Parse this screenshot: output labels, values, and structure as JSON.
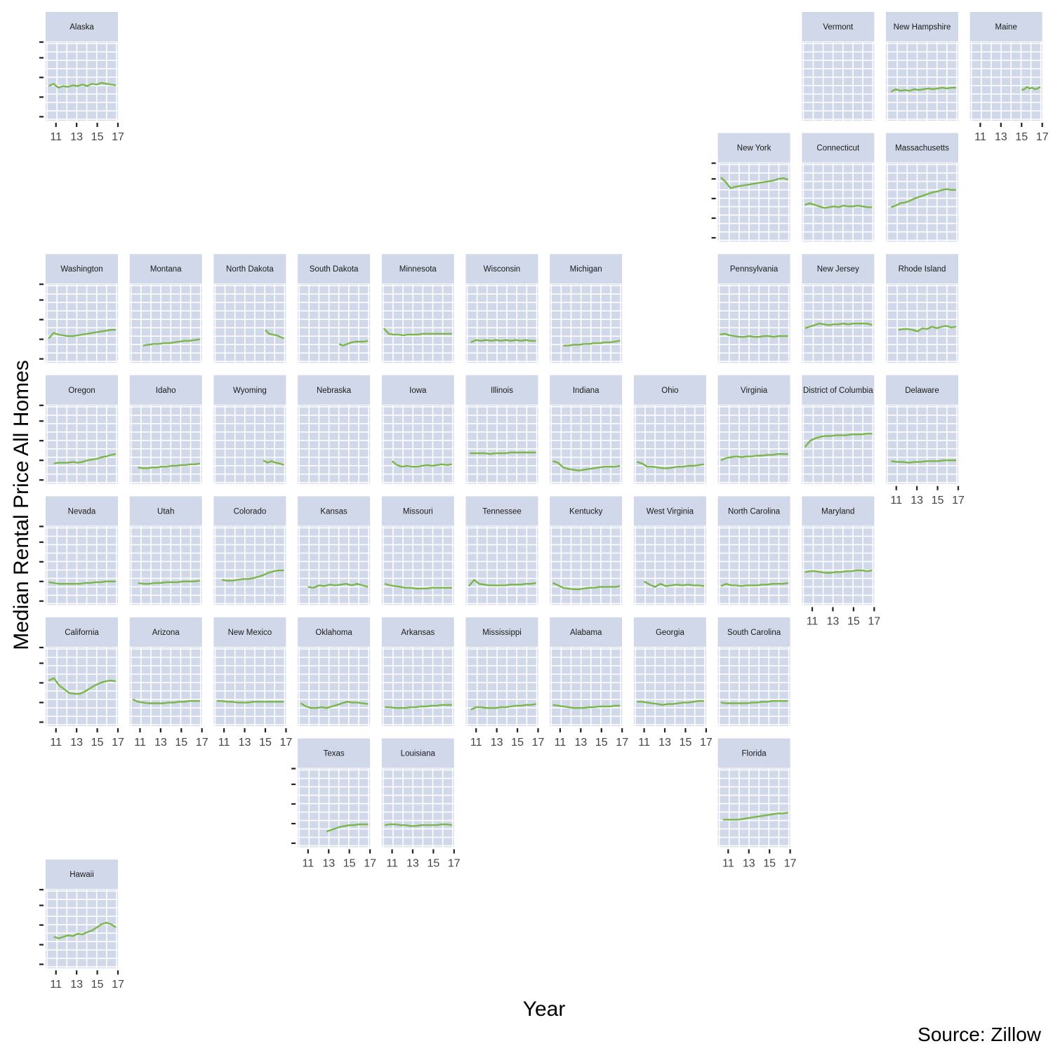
{
  "chart_data": {
    "type": "line",
    "layout": "geofacet-us-states",
    "xlabel": "Year",
    "ylabel": "Median Rental Price All Homes",
    "caption": "Source: Zillow",
    "x_tick_labels": [
      "11",
      "13",
      "15",
      "17"
    ],
    "x_ticks": [
      11,
      13,
      15,
      17
    ],
    "xlim": [
      10,
      17
    ],
    "ylim": [
      0,
      1
    ],
    "y_tick_values": [
      0.05,
      0.3,
      0.55,
      0.8,
      1.0
    ],
    "grid": true,
    "panel_background": "#d1d8e9",
    "strip_background": "#d1d8e9",
    "grid_color": "#ffffff",
    "line_color": "#7ab648",
    "panels": [
      {
        "name": "Alaska",
        "row": 0,
        "col": 0,
        "x_start": 10.3,
        "values": [
          0.44,
          0.47,
          0.42,
          0.44,
          0.43,
          0.45,
          0.44,
          0.46,
          0.44,
          0.47,
          0.46,
          0.48,
          0.47,
          0.46,
          0.45
        ]
      },
      {
        "name": "Vermont",
        "row": 0,
        "col": 9,
        "x_start": null,
        "values": []
      },
      {
        "name": "New Hampshire",
        "row": 0,
        "col": 10,
        "x_start": 10.5,
        "values": [
          0.37,
          0.4,
          0.38,
          0.39,
          0.38,
          0.4,
          0.39,
          0.4,
          0.41,
          0.4,
          0.41,
          0.42,
          0.41,
          0.42,
          0.42
        ]
      },
      {
        "name": "Maine",
        "row": 0,
        "col": 11,
        "x_start": 15.0,
        "values": [
          0.39,
          0.4,
          0.43,
          0.41,
          0.42,
          0.4,
          0.41,
          0.43
        ]
      },
      {
        "name": "New York",
        "row": 1,
        "col": 8,
        "x_start": 10.3,
        "values": [
          0.82,
          0.76,
          0.68,
          0.7,
          0.71,
          0.72,
          0.73,
          0.74,
          0.75,
          0.76,
          0.77,
          0.78,
          0.8,
          0.81,
          0.79
        ]
      },
      {
        "name": "Connecticut",
        "row": 1,
        "col": 9,
        "x_start": 10.3,
        "values": [
          0.47,
          0.49,
          0.47,
          0.45,
          0.43,
          0.44,
          0.45,
          0.44,
          0.46,
          0.45,
          0.45,
          0.46,
          0.45,
          0.44,
          0.44
        ]
      },
      {
        "name": "Massachusetts",
        "row": 1,
        "col": 10,
        "x_start": 10.5,
        "values": [
          0.44,
          0.46,
          0.49,
          0.5,
          0.52,
          0.55,
          0.57,
          0.59,
          0.61,
          0.63,
          0.64,
          0.66,
          0.67,
          0.66,
          0.66
        ]
      },
      {
        "name": "Washington",
        "row": 2,
        "col": 0,
        "x_start": 10.3,
        "values": [
          0.31,
          0.38,
          0.36,
          0.35,
          0.34,
          0.34,
          0.35,
          0.36,
          0.37,
          0.38,
          0.39,
          0.4,
          0.41,
          0.42,
          0.42
        ]
      },
      {
        "name": "Montana",
        "row": 2,
        "col": 1,
        "x_start": 11.3,
        "values": [
          0.22,
          0.23,
          0.24,
          0.24,
          0.25,
          0.25,
          0.26,
          0.27,
          0.28,
          0.28,
          0.29,
          0.3
        ]
      },
      {
        "name": "North Dakota",
        "row": 2,
        "col": 2,
        "x_start": 15.0,
        "values": [
          0.42,
          0.37,
          0.36,
          0.35,
          0.33,
          0.31
        ]
      },
      {
        "name": "South Dakota",
        "row": 2,
        "col": 3,
        "x_start": 14.0,
        "values": [
          0.24,
          0.22,
          0.24,
          0.26,
          0.27,
          0.27,
          0.27,
          0.28
        ]
      },
      {
        "name": "Minnesota",
        "row": 2,
        "col": 4,
        "x_start": 10.2,
        "values": [
          0.44,
          0.37,
          0.36,
          0.36,
          0.35,
          0.36,
          0.36,
          0.36,
          0.37,
          0.37,
          0.37,
          0.37,
          0.37,
          0.37,
          0.37
        ]
      },
      {
        "name": "Wisconsin",
        "row": 2,
        "col": 5,
        "x_start": 10.5,
        "values": [
          0.26,
          0.29,
          0.28,
          0.29,
          0.28,
          0.29,
          0.28,
          0.29,
          0.28,
          0.29,
          0.28,
          0.29,
          0.28,
          0.28
        ]
      },
      {
        "name": "Michigan",
        "row": 2,
        "col": 6,
        "x_start": 11.3,
        "values": [
          0.22,
          0.22,
          0.23,
          0.23,
          0.24,
          0.24,
          0.25,
          0.25,
          0.26,
          0.26,
          0.27,
          0.28
        ]
      },
      {
        "name": "Pennsylvania",
        "row": 2,
        "col": 8,
        "x_start": 10.2,
        "values": [
          0.36,
          0.37,
          0.35,
          0.34,
          0.33,
          0.33,
          0.34,
          0.33,
          0.33,
          0.34,
          0.34,
          0.33,
          0.34,
          0.34,
          0.34
        ]
      },
      {
        "name": "New Jersey",
        "row": 2,
        "col": 9,
        "x_start": 10.3,
        "values": [
          0.44,
          0.46,
          0.48,
          0.5,
          0.49,
          0.48,
          0.49,
          0.49,
          0.5,
          0.49,
          0.5,
          0.5,
          0.5,
          0.5,
          0.48
        ]
      },
      {
        "name": "Rhode Island",
        "row": 2,
        "col": 10,
        "x_start": 11.2,
        "values": [
          0.42,
          0.43,
          0.43,
          0.42,
          0.4,
          0.44,
          0.43,
          0.46,
          0.44,
          0.46,
          0.47,
          0.45,
          0.46
        ]
      },
      {
        "name": "Oregon",
        "row": 3,
        "col": 0,
        "x_start": 10.8,
        "values": [
          0.26,
          0.27,
          0.27,
          0.27,
          0.28,
          0.27,
          0.28,
          0.3,
          0.31,
          0.32,
          0.34,
          0.35,
          0.37,
          0.38
        ]
      },
      {
        "name": "Idaho",
        "row": 3,
        "col": 1,
        "x_start": 10.8,
        "values": [
          0.21,
          0.2,
          0.2,
          0.21,
          0.21,
          0.22,
          0.22,
          0.23,
          0.23,
          0.24,
          0.24,
          0.25,
          0.25,
          0.26
        ]
      },
      {
        "name": "Wyoming",
        "row": 3,
        "col": 2,
        "x_start": 14.8,
        "values": [
          0.3,
          0.27,
          0.29,
          0.27,
          0.26,
          0.24
        ]
      },
      {
        "name": "Nebraska",
        "row": 3,
        "col": 3,
        "x_start": null,
        "values": []
      },
      {
        "name": "Iowa",
        "row": 3,
        "col": 4,
        "x_start": 11.0,
        "values": [
          0.29,
          0.24,
          0.22,
          0.23,
          0.22,
          0.22,
          0.23,
          0.24,
          0.23,
          0.24,
          0.25,
          0.24,
          0.25
        ]
      },
      {
        "name": "Illinois",
        "row": 3,
        "col": 5,
        "x_start": 10.4,
        "values": [
          0.39,
          0.39,
          0.39,
          0.39,
          0.38,
          0.39,
          0.39,
          0.39,
          0.4,
          0.4,
          0.4,
          0.4,
          0.4,
          0.4
        ]
      },
      {
        "name": "Indiana",
        "row": 3,
        "col": 6,
        "x_start": 10.3,
        "values": [
          0.29,
          0.27,
          0.21,
          0.19,
          0.18,
          0.17,
          0.18,
          0.19,
          0.2,
          0.21,
          0.22,
          0.22,
          0.22,
          0.23
        ]
      },
      {
        "name": "Ohio",
        "row": 3,
        "col": 7,
        "x_start": 10.3,
        "values": [
          0.28,
          0.26,
          0.22,
          0.22,
          0.21,
          0.2,
          0.2,
          0.21,
          0.22,
          0.22,
          0.23,
          0.23,
          0.24,
          0.25
        ]
      },
      {
        "name": "Virginia",
        "row": 3,
        "col": 8,
        "x_start": 10.3,
        "values": [
          0.3,
          0.33,
          0.34,
          0.35,
          0.34,
          0.35,
          0.35,
          0.36,
          0.36,
          0.37,
          0.37,
          0.38,
          0.38,
          0.38
        ]
      },
      {
        "name": "District of Columbia",
        "row": 3,
        "col": 9,
        "x_start": 10.3,
        "values": [
          0.47,
          0.55,
          0.58,
          0.6,
          0.61,
          0.61,
          0.62,
          0.62,
          0.62,
          0.63,
          0.63,
          0.63,
          0.64,
          0.64
        ]
      },
      {
        "name": "Delaware",
        "row": 3,
        "col": 10,
        "x_start": 10.5,
        "values": [
          0.29,
          0.28,
          0.28,
          0.27,
          0.28,
          0.28,
          0.29,
          0.29,
          0.29,
          0.3,
          0.3,
          0.3
        ]
      },
      {
        "name": "Nevada",
        "row": 4,
        "col": 0,
        "x_start": 10.3,
        "values": [
          0.29,
          0.28,
          0.27,
          0.27,
          0.27,
          0.27,
          0.27,
          0.28,
          0.28,
          0.29,
          0.29,
          0.3,
          0.3,
          0.3
        ]
      },
      {
        "name": "Utah",
        "row": 4,
        "col": 1,
        "x_start": 10.8,
        "values": [
          0.28,
          0.27,
          0.27,
          0.28,
          0.28,
          0.29,
          0.29,
          0.29,
          0.3,
          0.3,
          0.3,
          0.31
        ]
      },
      {
        "name": "Colorado",
        "row": 4,
        "col": 2,
        "x_start": 10.8,
        "values": [
          0.32,
          0.31,
          0.31,
          0.32,
          0.33,
          0.33,
          0.34,
          0.36,
          0.38,
          0.41,
          0.43,
          0.44,
          0.44
        ]
      },
      {
        "name": "Kansas",
        "row": 4,
        "col": 3,
        "x_start": 11.0,
        "values": [
          0.23,
          0.22,
          0.25,
          0.24,
          0.26,
          0.25,
          0.26,
          0.27,
          0.25,
          0.27,
          0.25,
          0.23
        ]
      },
      {
        "name": "Missouri",
        "row": 4,
        "col": 4,
        "x_start": 10.3,
        "values": [
          0.27,
          0.25,
          0.24,
          0.23,
          0.22,
          0.22,
          0.21,
          0.21,
          0.21,
          0.22,
          0.22,
          0.22,
          0.22,
          0.22
        ]
      },
      {
        "name": "Tennessee",
        "row": 4,
        "col": 5,
        "x_start": 10.3,
        "values": [
          0.24,
          0.32,
          0.27,
          0.26,
          0.25,
          0.25,
          0.25,
          0.25,
          0.26,
          0.26,
          0.26,
          0.27,
          0.27,
          0.28
        ]
      },
      {
        "name": "Kentucky",
        "row": 4,
        "col": 6,
        "x_start": 10.3,
        "values": [
          0.28,
          0.25,
          0.22,
          0.21,
          0.2,
          0.2,
          0.21,
          0.22,
          0.22,
          0.23,
          0.23,
          0.23,
          0.23,
          0.24
        ]
      },
      {
        "name": "West Virginia",
        "row": 4,
        "col": 7,
        "x_start": 11.0,
        "values": [
          0.3,
          0.26,
          0.23,
          0.27,
          0.24,
          0.25,
          0.26,
          0.25,
          0.26,
          0.25,
          0.25,
          0.24
        ]
      },
      {
        "name": "North Carolina",
        "row": 4,
        "col": 8,
        "x_start": 10.3,
        "values": [
          0.24,
          0.27,
          0.25,
          0.25,
          0.24,
          0.25,
          0.25,
          0.25,
          0.26,
          0.26,
          0.27,
          0.27,
          0.27,
          0.28
        ]
      },
      {
        "name": "Maryland",
        "row": 4,
        "col": 9,
        "x_start": 10.3,
        "values": [
          0.42,
          0.43,
          0.43,
          0.42,
          0.41,
          0.41,
          0.42,
          0.42,
          0.43,
          0.43,
          0.44,
          0.44,
          0.43,
          0.44
        ]
      },
      {
        "name": "California",
        "row": 5,
        "col": 0,
        "x_start": 10.3,
        "values": [
          0.58,
          0.61,
          0.52,
          0.47,
          0.42,
          0.41,
          0.41,
          0.44,
          0.48,
          0.52,
          0.55,
          0.57,
          0.58,
          0.57
        ]
      },
      {
        "name": "Arizona",
        "row": 5,
        "col": 1,
        "x_start": 10.3,
        "values": [
          0.34,
          0.31,
          0.3,
          0.29,
          0.29,
          0.29,
          0.29,
          0.3,
          0.3,
          0.31,
          0.31,
          0.32,
          0.32,
          0.32
        ]
      },
      {
        "name": "New Mexico",
        "row": 5,
        "col": 2,
        "x_start": 10.3,
        "values": [
          0.32,
          0.32,
          0.31,
          0.31,
          0.3,
          0.3,
          0.3,
          0.31,
          0.31,
          0.31,
          0.31,
          0.31,
          0.31,
          0.31
        ]
      },
      {
        "name": "Oklahoma",
        "row": 5,
        "col": 3,
        "x_start": 10.3,
        "values": [
          0.29,
          0.25,
          0.23,
          0.23,
          0.24,
          0.23,
          0.25,
          0.27,
          0.29,
          0.31,
          0.3,
          0.3,
          0.29,
          0.28
        ]
      },
      {
        "name": "Arkansas",
        "row": 5,
        "col": 4,
        "x_start": 10.3,
        "values": [
          0.24,
          0.24,
          0.23,
          0.23,
          0.23,
          0.24,
          0.24,
          0.25,
          0.25,
          0.26,
          0.26,
          0.27,
          0.27,
          0.27
        ]
      },
      {
        "name": "Mississippi",
        "row": 5,
        "col": 5,
        "x_start": 10.5,
        "values": [
          0.21,
          0.24,
          0.24,
          0.23,
          0.23,
          0.23,
          0.24,
          0.24,
          0.25,
          0.26,
          0.26,
          0.27,
          0.27,
          0.28
        ]
      },
      {
        "name": "Alabama",
        "row": 5,
        "col": 6,
        "x_start": 10.3,
        "values": [
          0.27,
          0.26,
          0.25,
          0.24,
          0.23,
          0.23,
          0.23,
          0.24,
          0.24,
          0.25,
          0.25,
          0.25,
          0.26,
          0.26
        ]
      },
      {
        "name": "Georgia",
        "row": 5,
        "col": 7,
        "x_start": 10.3,
        "values": [
          0.31,
          0.31,
          0.3,
          0.29,
          0.28,
          0.27,
          0.28,
          0.28,
          0.29,
          0.3,
          0.3,
          0.31,
          0.32,
          0.32
        ]
      },
      {
        "name": "South Carolina",
        "row": 5,
        "col": 8,
        "x_start": 10.3,
        "values": [
          0.3,
          0.29,
          0.29,
          0.29,
          0.29,
          0.29,
          0.3,
          0.3,
          0.31,
          0.31,
          0.32,
          0.32,
          0.32,
          0.32
        ]
      },
      {
        "name": "Texas",
        "row": 6,
        "col": 3,
        "x_start": 12.8,
        "values": [
          0.2,
          0.22,
          0.24,
          0.26,
          0.27,
          0.28,
          0.28,
          0.29,
          0.29,
          0.29
        ]
      },
      {
        "name": "Louisiana",
        "row": 6,
        "col": 4,
        "x_start": 10.3,
        "values": [
          0.28,
          0.29,
          0.29,
          0.28,
          0.28,
          0.27,
          0.27,
          0.28,
          0.28,
          0.28,
          0.28,
          0.29,
          0.29,
          0.28
        ]
      },
      {
        "name": "Florida",
        "row": 6,
        "col": 8,
        "x_start": 10.5,
        "values": [
          0.35,
          0.35,
          0.35,
          0.35,
          0.36,
          0.37,
          0.38,
          0.39,
          0.4,
          0.41,
          0.42,
          0.43,
          0.43,
          0.44
        ]
      },
      {
        "name": "Hawaii",
        "row": 7,
        "col": 0,
        "x_start": 10.8,
        "values": [
          0.4,
          0.38,
          0.4,
          0.42,
          0.41,
          0.44,
          0.43,
          0.46,
          0.48,
          0.52,
          0.56,
          0.58,
          0.56,
          0.52
        ]
      }
    ]
  }
}
